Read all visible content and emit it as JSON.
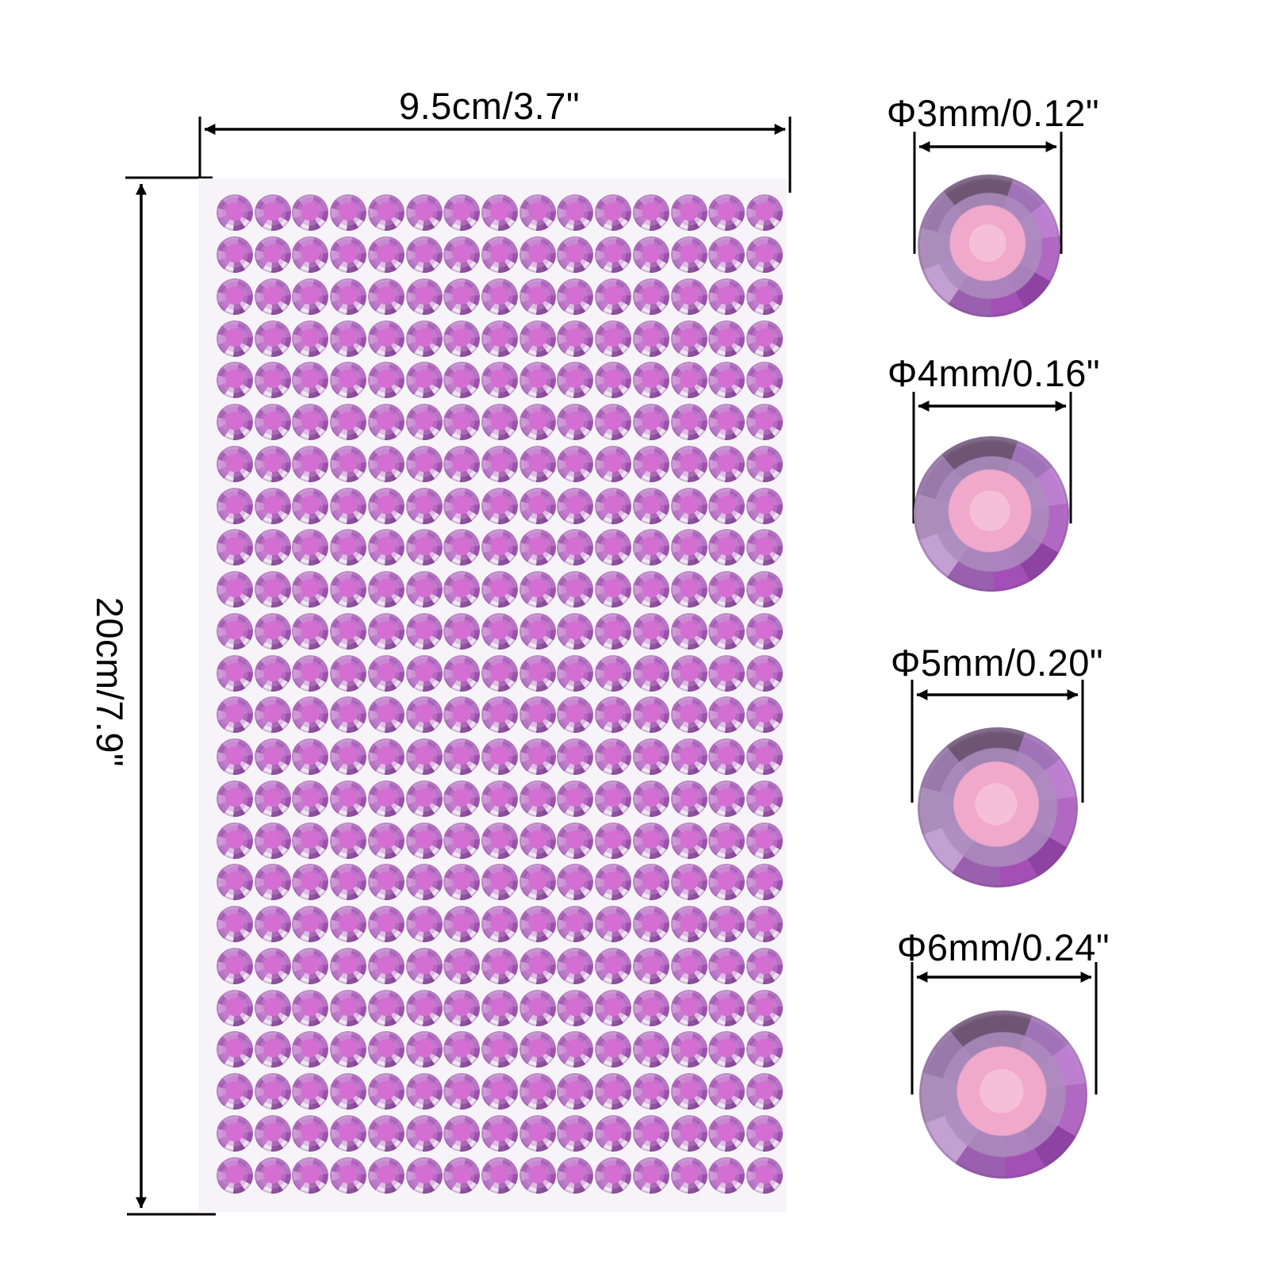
{
  "page": {
    "background": "#ffffff"
  },
  "sheet": {
    "width_label": "9.5cm/3.7\"",
    "height_label": "20cm/7.9\"",
    "rows": 24,
    "cols": 15,
    "background": "#f7f4f9",
    "gem_color_main": "#b668c4",
    "gem_color_center": "#d56ed2",
    "gem_highlight": "#f0e6f4"
  },
  "closeups": [
    {
      "id": "3mm",
      "label": "Φ3mm/0.12\""
    },
    {
      "id": "4mm",
      "label": "Φ4mm/0.16\""
    },
    {
      "id": "5mm",
      "label": "Φ5mm/0.20\""
    },
    {
      "id": "6mm",
      "label": "Φ6mm/0.24\""
    }
  ],
  "colors": {
    "line": "#000000",
    "label_text": "#000000",
    "gem_dark_facet": "#6d5573",
    "gem_pink_pad": "#f0a8cb"
  }
}
